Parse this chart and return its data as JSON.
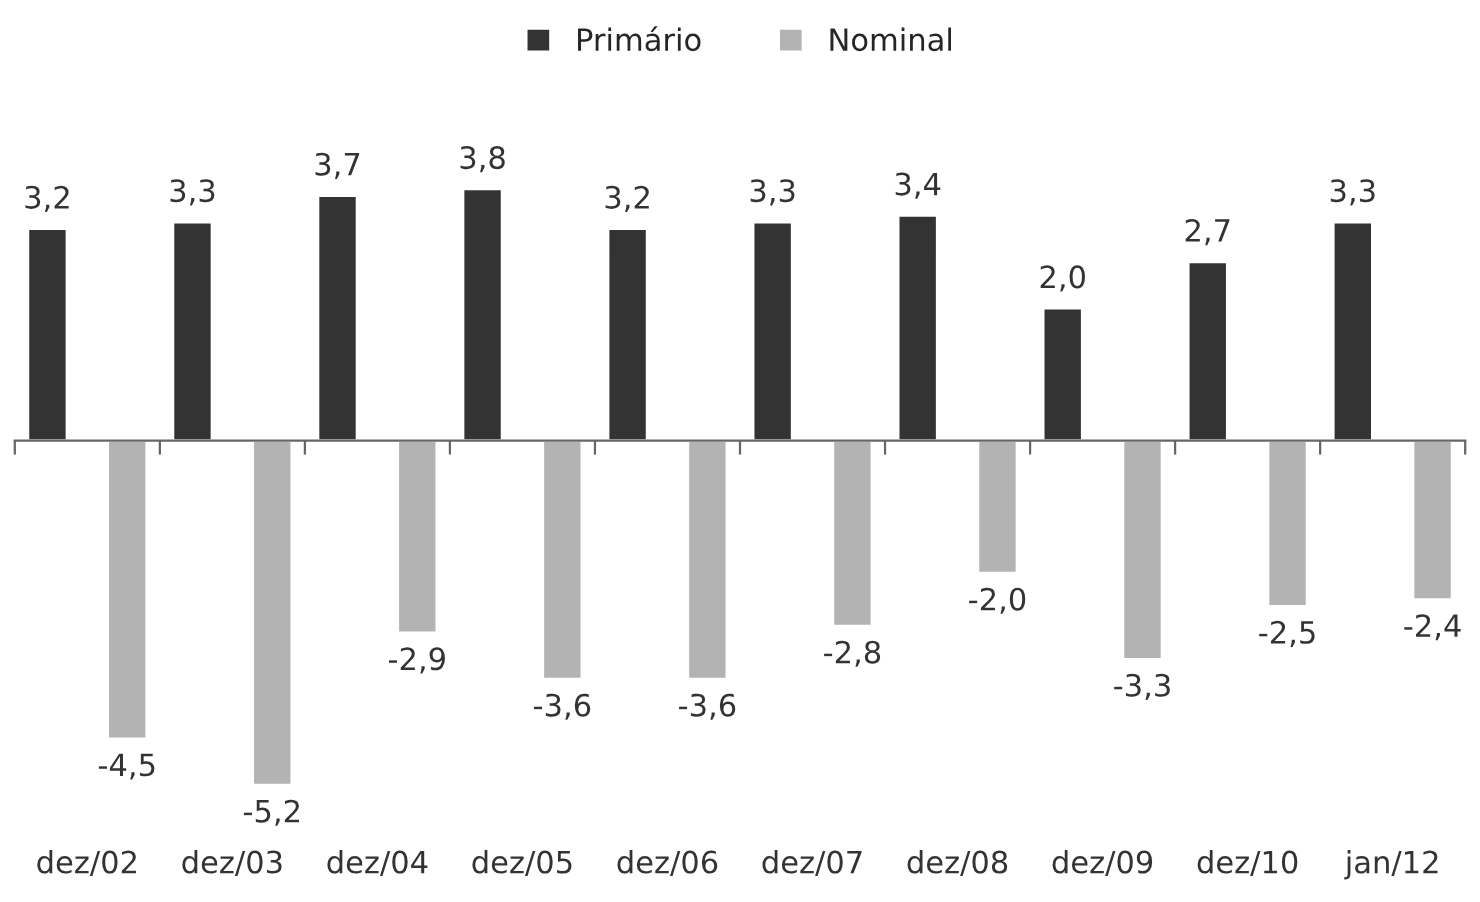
{
  "chart_data": {
    "type": "bar",
    "categories": [
      "dez/02",
      "dez/03",
      "dez/04",
      "dez/05",
      "dez/06",
      "dez/07",
      "dez/08",
      "dez/09",
      "dez/10",
      "jan/12"
    ],
    "series": [
      {
        "name": "Primário",
        "color": "#333333",
        "values": [
          3.2,
          3.3,
          3.7,
          3.8,
          3.2,
          3.3,
          3.4,
          2.0,
          2.7,
          3.3
        ],
        "value_labels": [
          "3,2",
          "3,3",
          "3,7",
          "3,8",
          "3,2",
          "3,3",
          "3,4",
          "2,0",
          "2,7",
          "3,3"
        ]
      },
      {
        "name": "Nominal",
        "color": "#b3b3b3",
        "values": [
          -4.5,
          -5.2,
          -2.9,
          -3.6,
          -3.6,
          -2.8,
          -2.0,
          -3.3,
          -2.5,
          -2.4
        ],
        "value_labels": [
          "-4,5",
          "-5,2",
          "-2,9",
          "-3,6",
          "-3,6",
          "-2,8",
          "-2,0",
          "-3,3",
          "-2,5",
          "-2,4"
        ]
      }
    ],
    "legend": "top",
    "grid": false
  }
}
